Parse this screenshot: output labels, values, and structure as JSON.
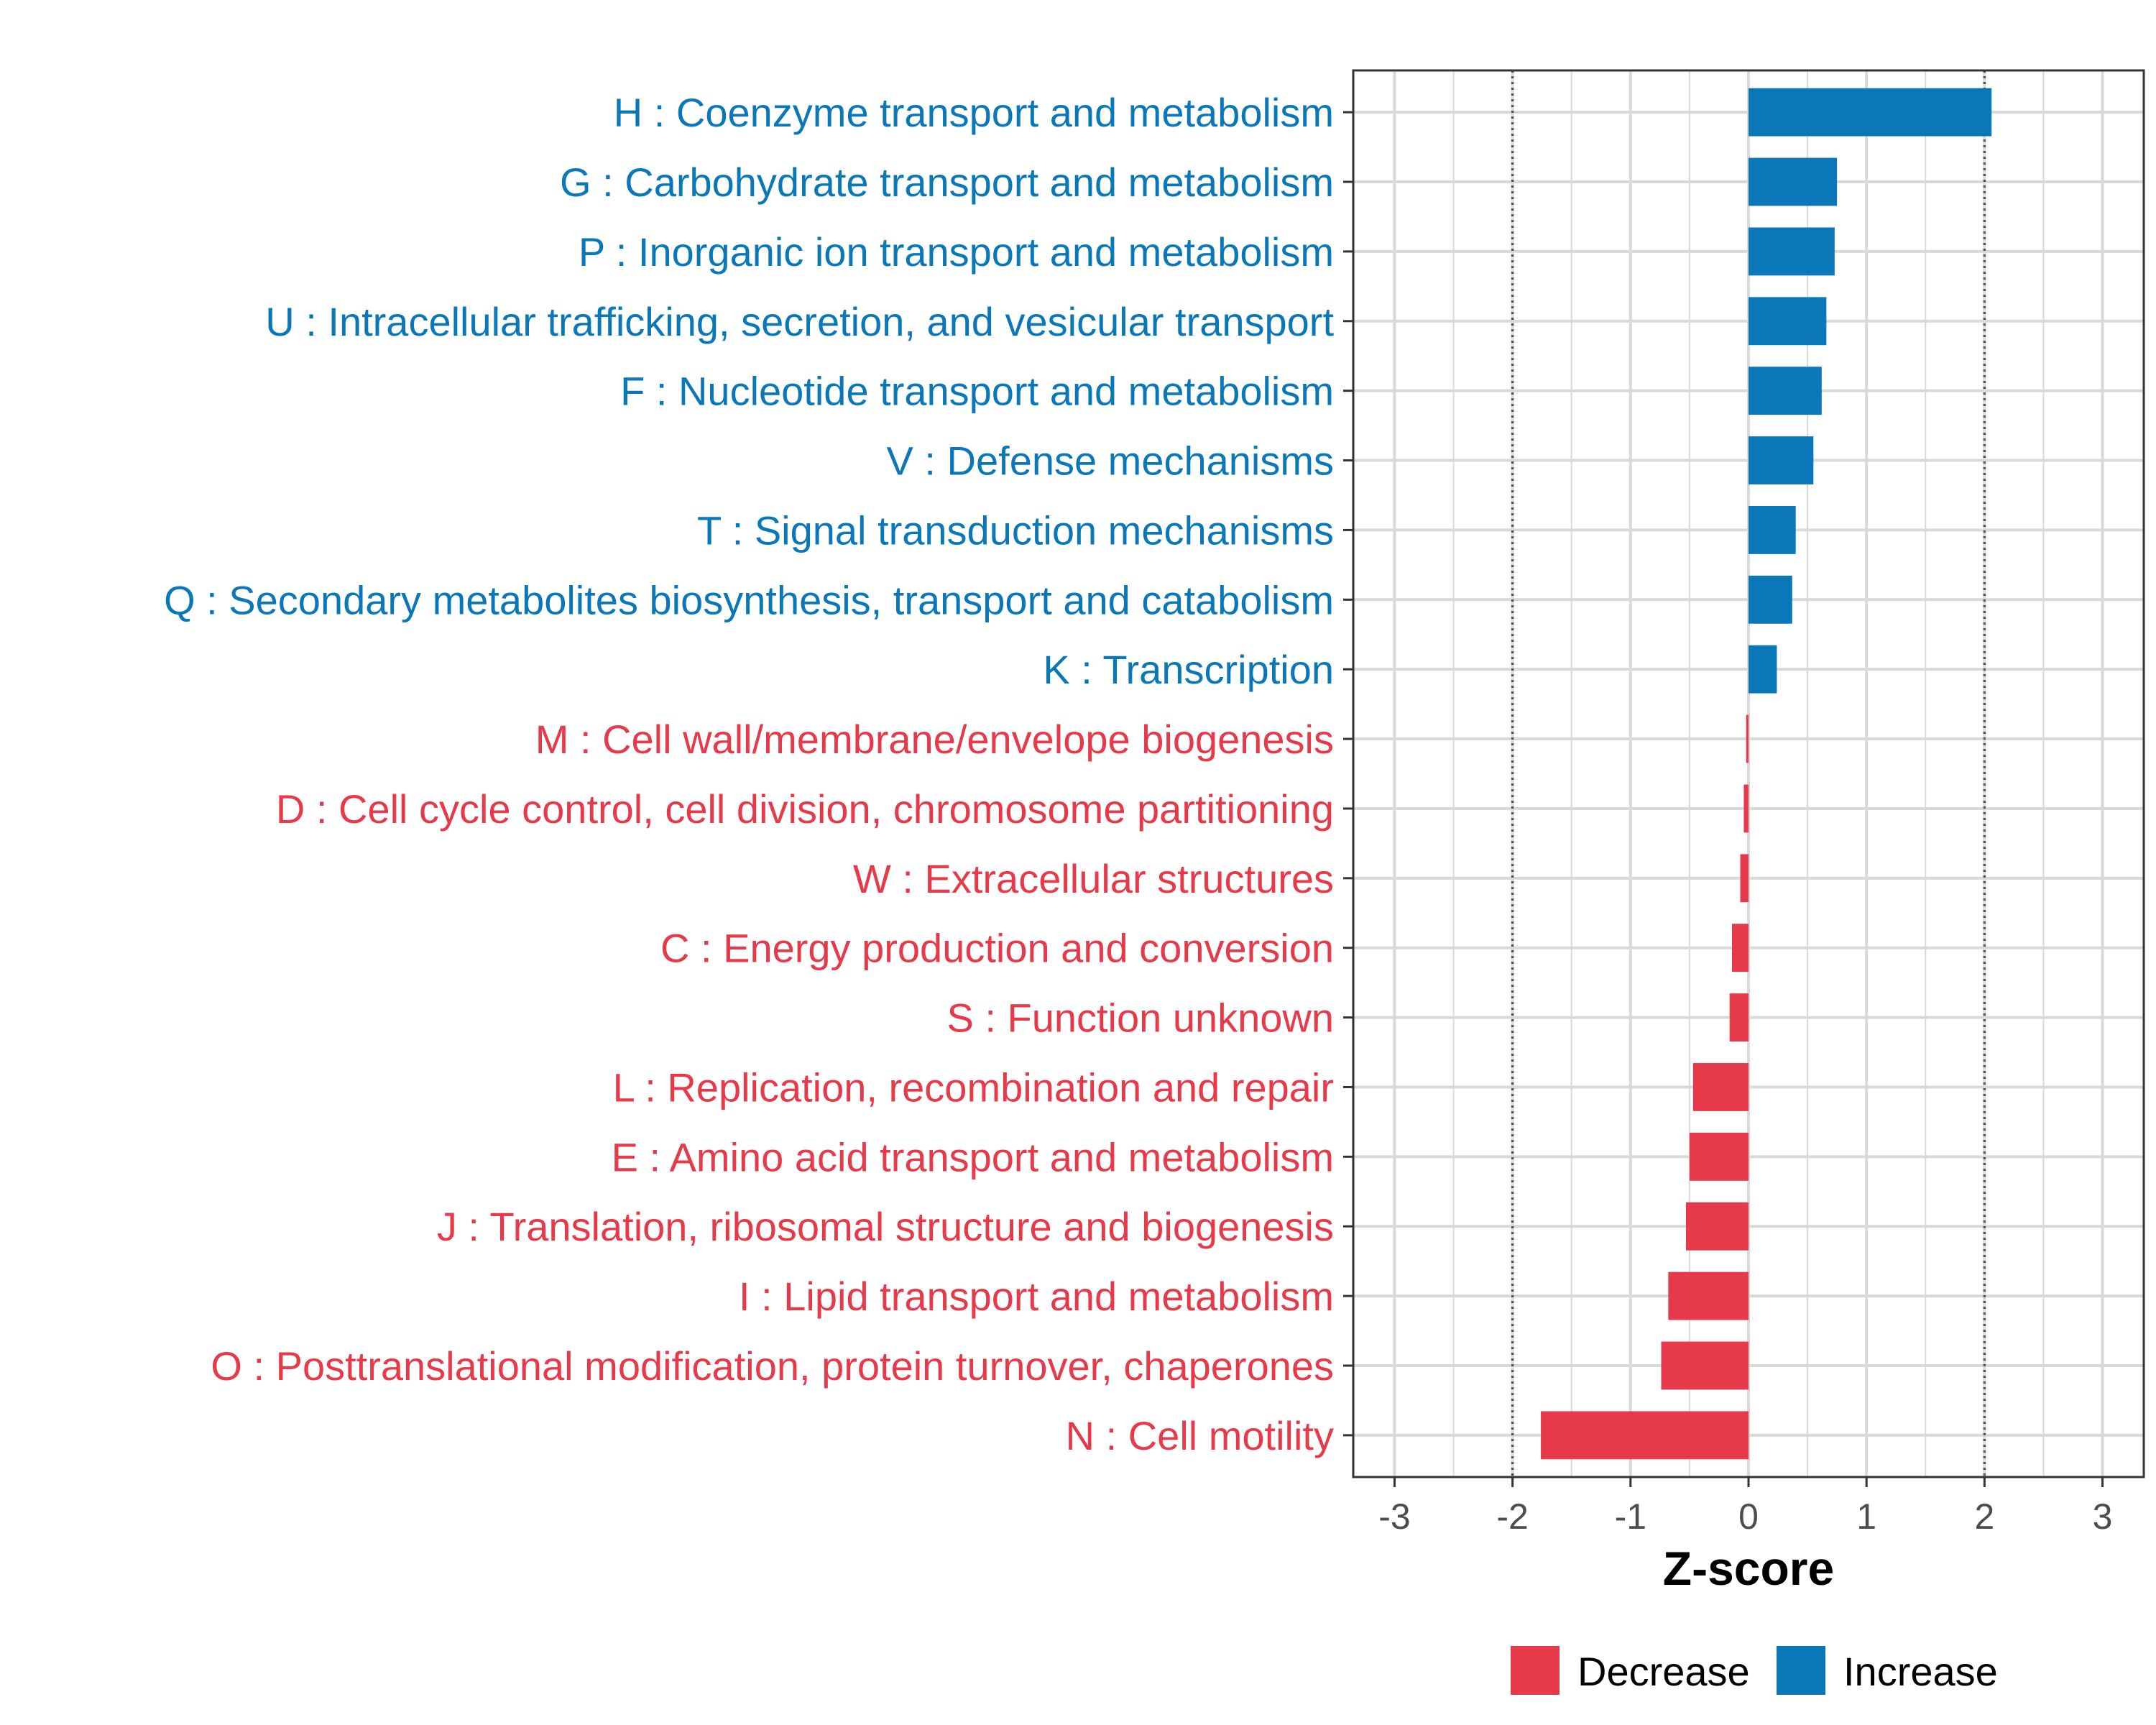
{
  "chart_data": {
    "type": "bar",
    "orientation": "horizontal",
    "categories": [
      "H : Coenzyme transport and metabolism",
      "G : Carbohydrate transport and metabolism",
      "P : Inorganic ion transport and metabolism",
      "U : Intracellular trafficking, secretion, and vesicular transport",
      "F : Nucleotide transport and metabolism",
      "V : Defense mechanisms",
      "T : Signal transduction mechanisms",
      "Q : Secondary metabolites biosynthesis, transport and catabolism",
      "K : Transcription",
      "M : Cell wall/membrane/envelope biogenesis",
      "D : Cell cycle control, cell division, chromosome partitioning",
      "W : Extracellular structures",
      "C : Energy production and conversion",
      "S : Function unknown",
      "L : Replication, recombination and repair",
      "E : Amino acid transport and metabolism",
      "J : Translation, ribosomal structure and biogenesis",
      "I : Lipid transport and metabolism",
      "O : Posttranslational modification, protein turnover, chaperones",
      "N : Cell motility"
    ],
    "values": [
      2.06,
      0.75,
      0.73,
      0.66,
      0.62,
      0.55,
      0.4,
      0.37,
      0.24,
      -0.02,
      -0.04,
      -0.07,
      -0.14,
      -0.16,
      -0.47,
      -0.5,
      -0.53,
      -0.68,
      -0.74,
      -1.76
    ],
    "groups": [
      "Increase",
      "Increase",
      "Increase",
      "Increase",
      "Increase",
      "Increase",
      "Increase",
      "Increase",
      "Increase",
      "Decrease",
      "Decrease",
      "Decrease",
      "Decrease",
      "Decrease",
      "Decrease",
      "Decrease",
      "Decrease",
      "Decrease",
      "Decrease",
      "Decrease"
    ],
    "xlabel": "Z-score",
    "ylabel": "",
    "xlim": [
      -3.35,
      3.35
    ],
    "xticks": [
      -3,
      -2,
      -1,
      0,
      1,
      2,
      3
    ],
    "xtick_labels": [
      "-3",
      "-2",
      "-1",
      "0",
      "1",
      "2",
      "3"
    ],
    "reference_lines": [
      -2,
      2
    ],
    "grid": true,
    "legend": {
      "position": "bottom",
      "entries": [
        {
          "label": "Decrease",
          "color": "#e63a4a"
        },
        {
          "label": "Increase",
          "color": "#0a77b8"
        }
      ]
    }
  },
  "colors": {
    "increase": "#0a77b8",
    "decrease": "#e63a4a",
    "grid": "#d9d9d9",
    "reference_line": "#555555"
  }
}
